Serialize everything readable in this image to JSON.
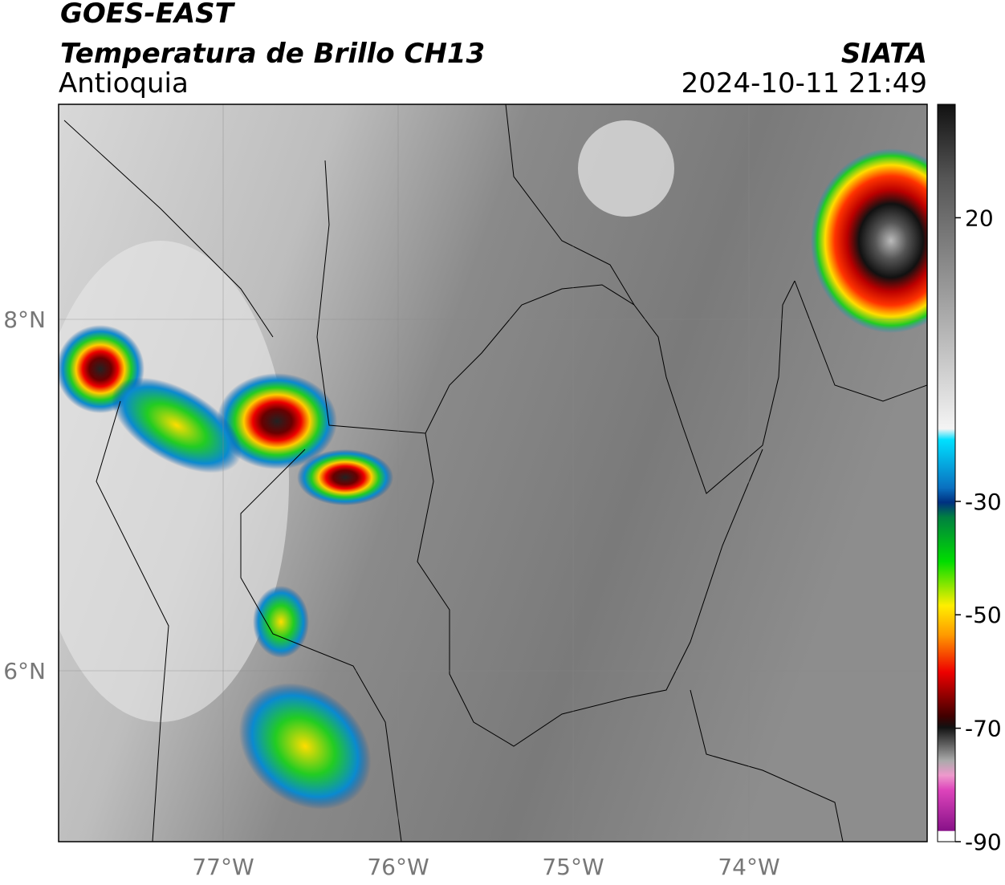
{
  "header": {
    "title": "GOES-EAST",
    "subtitle": "Temperatura de Brillo CH13",
    "region": "Antioquia",
    "source": "SIATA",
    "datetime": "2024-10-11 21:49"
  },
  "map": {
    "lat_labels": [
      "8°N",
      "6°N"
    ],
    "lon_labels": [
      "77°W",
      "76°W",
      "75°W",
      "74°W"
    ]
  },
  "colorbar": {
    "lim": [
      -90,
      40
    ],
    "ticks": [
      20,
      -30,
      -50,
      -70,
      -90
    ]
  }
}
